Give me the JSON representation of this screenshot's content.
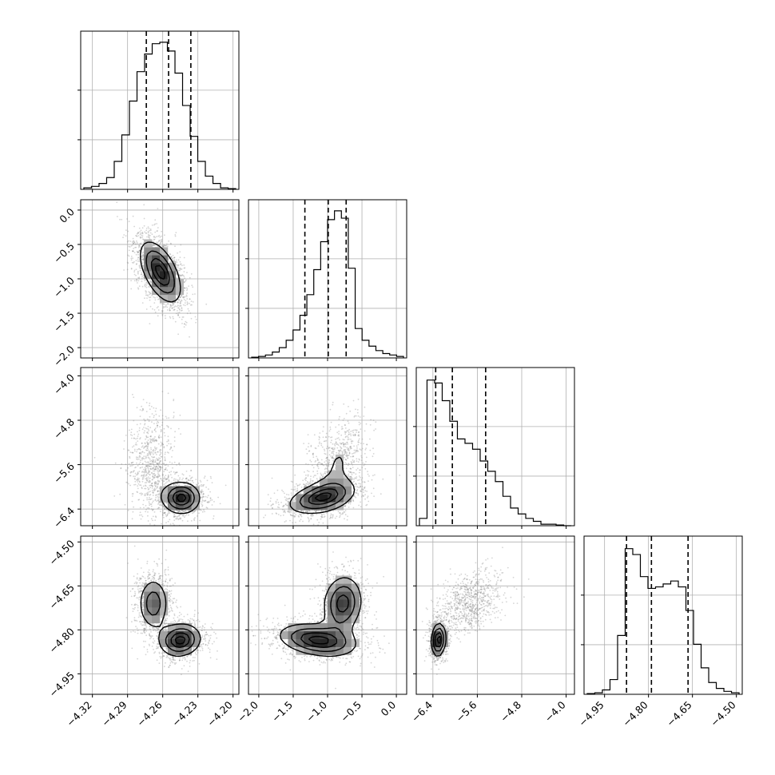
{
  "chart_data": {
    "type": "corner",
    "parameters": [
      {
        "ticks": [
          -4.32,
          -4.29,
          -4.26,
          -4.23,
          -4.2
        ],
        "tick_labels": [
          "−4.32",
          "−4.29",
          "−4.26",
          "−4.23",
          "−4.20"
        ],
        "range": [
          -4.33,
          -4.195
        ]
      },
      {
        "ticks": [
          -2.0,
          -1.5,
          -1.0,
          -0.5,
          0.0
        ],
        "tick_labels": [
          "−2.0",
          "−1.5",
          "−1.0",
          "−0.5",
          "0.0"
        ],
        "range": [
          -2.15,
          0.15
        ]
      },
      {
        "ticks": [
          -6.4,
          -5.6,
          -4.8,
          -4.0
        ],
        "tick_labels": [
          "−6.4",
          "−5.6",
          "−4.8",
          "−4.0"
        ],
        "range": [
          -6.7,
          -3.85
        ]
      },
      {
        "ticks": [
          -4.95,
          -4.8,
          -4.65,
          -4.5
        ],
        "tick_labels": [
          "−4.95",
          "−4.80",
          "−4.65",
          "−4.50"
        ],
        "range": [
          -5.02,
          -4.48
        ]
      }
    ],
    "histograms": [
      {
        "quantiles": [
          -4.274,
          -4.255,
          -4.236
        ],
        "counts": [
          0.01,
          0.02,
          0.04,
          0.08,
          0.19,
          0.37,
          0.6,
          0.8,
          0.92,
          0.99,
          1.0,
          0.94,
          0.79,
          0.57,
          0.36,
          0.19,
          0.09,
          0.04,
          0.01,
          0.005
        ]
      },
      {
        "quantiles": [
          -1.33,
          -0.99,
          -0.73
        ],
        "counts": [
          0.005,
          0.01,
          0.02,
          0.04,
          0.07,
          0.12,
          0.19,
          0.29,
          0.43,
          0.6,
          0.79,
          0.94,
          1.0,
          0.95,
          0.61,
          0.2,
          0.12,
          0.08,
          0.05,
          0.03,
          0.02,
          0.01
        ]
      },
      {
        "quantiles": [
          -6.35,
          -6.05,
          -5.45
        ],
        "counts": [
          0.05,
          0.99,
          0.97,
          0.85,
          0.71,
          0.59,
          0.56,
          0.52,
          0.44,
          0.37,
          0.3,
          0.2,
          0.12,
          0.08,
          0.05,
          0.03,
          0.01,
          0.01,
          0.005,
          0.0
        ]
      },
      {
        "quantiles": [
          -4.875,
          -4.79,
          -4.665
        ],
        "counts": [
          0.005,
          0.01,
          0.03,
          0.1,
          0.4,
          0.99,
          0.95,
          0.8,
          0.72,
          0.73,
          0.75,
          0.77,
          0.73,
          0.57,
          0.34,
          0.18,
          0.08,
          0.04,
          0.02,
          0.01
        ]
      }
    ],
    "scatter_clusters": {
      "1_0": [
        {
          "mean": [
            -4.262,
            -0.9
          ],
          "sd": [
            0.011,
            0.28
          ],
          "rho": -0.55,
          "w": 1.0
        }
      ],
      "2_0": [
        {
          "mean": [
            -4.27,
            -5.6
          ],
          "sd": [
            0.01,
            0.45
          ],
          "rho": 0.1,
          "w": 0.4
        },
        {
          "mean": [
            -4.244,
            -6.2
          ],
          "sd": [
            0.01,
            0.18
          ],
          "rho": 0.0,
          "w": 0.6
        }
      ],
      "2_1": [
        {
          "mean": [
            -0.85,
            -5.6
          ],
          "sd": [
            0.22,
            0.45
          ],
          "rho": 0.3,
          "w": 0.4
        },
        {
          "mean": [
            -1.1,
            -6.2
          ],
          "sd": [
            0.3,
            0.18
          ],
          "rho": 0.4,
          "w": 0.6
        }
      ],
      "3_0": [
        {
          "mean": [
            -4.268,
            -4.71
          ],
          "sd": [
            0.008,
            0.055
          ],
          "rho": 0.0,
          "w": 0.45
        },
        {
          "mean": [
            -4.245,
            -4.835
          ],
          "sd": [
            0.011,
            0.035
          ],
          "rho": 0.1,
          "w": 0.55
        }
      ],
      "3_1": [
        {
          "mean": [
            -0.78,
            -4.71
          ],
          "sd": [
            0.18,
            0.06
          ],
          "rho": 0.1,
          "w": 0.45
        },
        {
          "mean": [
            -1.15,
            -4.835
          ],
          "sd": [
            0.35,
            0.035
          ],
          "rho": -0.3,
          "w": 0.55
        }
      ],
      "3_2": [
        {
          "mean": [
            -5.75,
            -4.71
          ],
          "sd": [
            0.3,
            0.055
          ],
          "rho": 0.4,
          "w": 0.45
        },
        {
          "mean": [
            -6.3,
            -4.835
          ],
          "sd": [
            0.08,
            0.035
          ],
          "rho": 0.1,
          "w": 0.55
        }
      ]
    },
    "contour_levels": [
      0.3,
      0.55,
      0.78,
      0.93
    ],
    "grid": true,
    "colors": {
      "line": "#000000",
      "points": "#888888",
      "grid": "#b0b0b0",
      "density_max": "#222222"
    }
  }
}
